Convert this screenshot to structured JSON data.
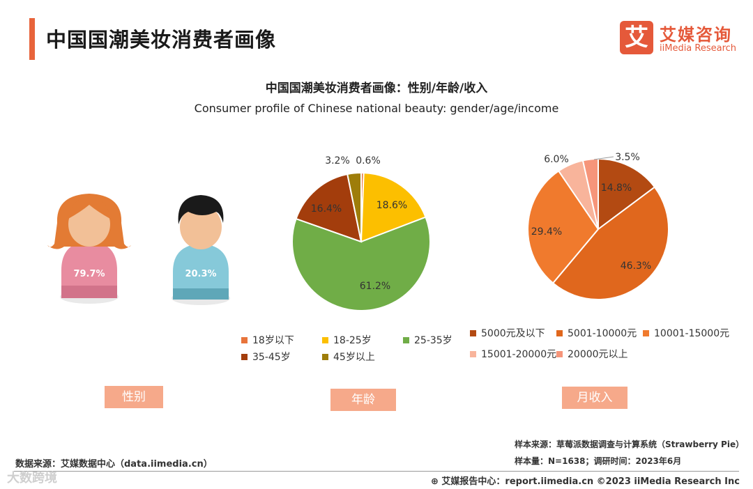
{
  "header": {
    "title": "中国国潮美妆消费者画像",
    "logo_mark": "艾",
    "logo_cn": "艾媒咨询",
    "logo_en": "iiMedia Research"
  },
  "subtitle_cn": "中国国潮美妆消费者画像：性别/年龄/收入",
  "subtitle_en": "Consumer profile of Chinese national beauty: gender/age/income",
  "tags": {
    "gender": "性别",
    "age": "年龄",
    "income": "月收入"
  },
  "chart_data": [
    {
      "type": "pictogram",
      "name": "性别",
      "categories": [
        "female",
        "male"
      ],
      "values": [
        79.7,
        20.3
      ],
      "labels": [
        "79.7%",
        "20.3%"
      ]
    },
    {
      "type": "pie",
      "name": "年龄",
      "categories": [
        "18岁以下",
        "18-25岁",
        "25-35岁",
        "35-45岁",
        "45岁以上"
      ],
      "values": [
        0.6,
        18.6,
        61.2,
        16.4,
        3.2
      ],
      "labels": [
        "0.6%",
        "18.6%",
        "61.2%",
        "16.4%",
        "3.2%"
      ],
      "colors": [
        "#e8743b",
        "#fcbf00",
        "#70ad47",
        "#a33d0c",
        "#9e7d0a"
      ]
    },
    {
      "type": "pie",
      "name": "月收入",
      "categories": [
        "5000元及以下",
        "5001-10000元",
        "10001-15000元",
        "15001-20000元",
        "20000元以上"
      ],
      "values": [
        14.8,
        46.3,
        29.4,
        6.0,
        3.5
      ],
      "labels": [
        "14.8%",
        "46.3%",
        "29.4%",
        "6.0%",
        "3.5%"
      ],
      "colors": [
        "#b34a12",
        "#e0671d",
        "#f07a2d",
        "#f8b49b",
        "#f6957a"
      ]
    }
  ],
  "source": "数据来源：艾媒数据中心（data.iimedia.cn）",
  "sample_source": "样本来源：草莓派数据调查与计算系统（Strawberry Pie）",
  "sample_size": "样本量：N=1638；调研时间：2023年6月",
  "footer": "艾媒报告中心：report.iimedia.cn  ©2023  iiMedia Research  Inc",
  "watermark": "大数跨境"
}
